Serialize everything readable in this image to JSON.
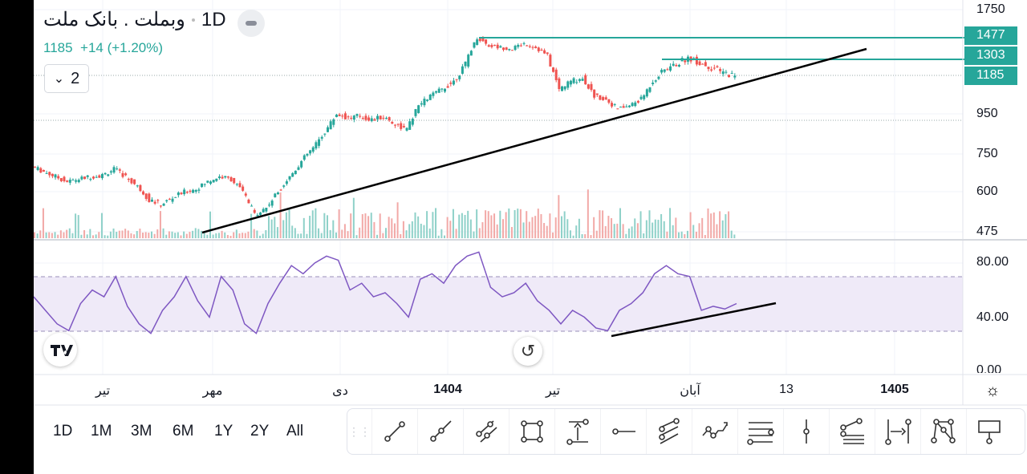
{
  "header": {
    "symbol": "وبملت . بانک ملت",
    "interval": "1D",
    "price": "1185",
    "change": "+14 (+1.20%)",
    "indicator_count": "2"
  },
  "price_axis": {
    "ticks": [
      "1750",
      "950",
      "750",
      "600",
      "475"
    ],
    "tags": [
      {
        "label": "1477",
        "value": 1477
      },
      {
        "label": "1303",
        "value": 1303
      },
      {
        "label": "1185",
        "value": 1185
      }
    ]
  },
  "rsi_axis": {
    "ticks": [
      "80.00",
      "40.00",
      "0.00"
    ],
    "upper_band": 70,
    "lower_band": 30
  },
  "time_axis": [
    "تیر",
    "مهر",
    "دی",
    "1404",
    "تیر",
    "آبان",
    "13",
    "1405"
  ],
  "timeframes": [
    "1D",
    "1M",
    "3M",
    "6M",
    "1Y",
    "2Y",
    "All"
  ],
  "tools": [
    "trend-line",
    "ray",
    "parallel-channel",
    "rectangle",
    "price-range",
    "horizontal-ray",
    "pitchfork",
    "path",
    "fib-retracement",
    "vertical-line",
    "fib-fan",
    "date-range",
    "xabcd-pattern",
    "callout"
  ],
  "colors": {
    "up": "#26a69a",
    "down": "#ef5350",
    "rsi": "#7e57c2",
    "rsi_band": "#efeaf8"
  },
  "price_series": [
    700,
    680,
    660,
    640,
    650,
    660,
    665,
    690,
    660,
    620,
    575,
    560,
    580,
    600,
    610,
    640,
    660,
    650,
    600,
    530,
    550,
    600,
    660,
    720,
    780,
    860,
    950,
    930,
    940,
    920,
    935,
    900,
    870,
    1000,
    1060,
    1100,
    1150,
    1250,
    1477,
    1400,
    1380,
    1370,
    1420,
    1380,
    1300,
    1100,
    1150,
    1170,
    1060,
    1040,
    980,
    1000,
    1040,
    1150,
    1220,
    1250,
    1290,
    1260,
    1230,
    1200,
    1185
  ],
  "rsi_series": [
    55,
    45,
    35,
    30,
    50,
    60,
    55,
    70,
    48,
    35,
    28,
    45,
    55,
    70,
    52,
    40,
    70,
    60,
    35,
    28,
    50,
    65,
    78,
    72,
    80,
    85,
    82,
    60,
    65,
    55,
    58,
    50,
    40,
    68,
    72,
    65,
    78,
    85,
    88,
    62,
    55,
    58,
    65,
    52,
    45,
    35,
    45,
    40,
    32,
    30,
    45,
    50,
    58,
    72,
    78,
    72,
    70,
    45,
    48,
    46,
    50
  ]
}
